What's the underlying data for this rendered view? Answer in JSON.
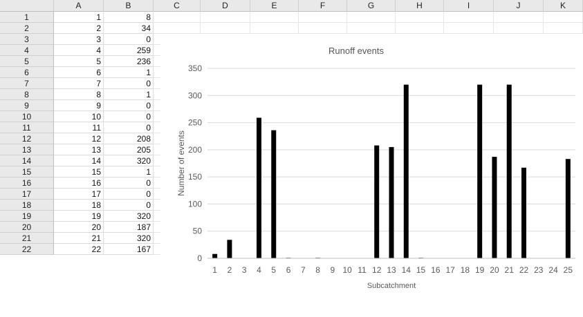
{
  "spreadsheet": {
    "column_headers": [
      "A",
      "B",
      "C",
      "D",
      "E",
      "F",
      "G",
      "H",
      "I",
      "J",
      "K"
    ],
    "rows": [
      {
        "row": "1",
        "a": "1",
        "b": "8"
      },
      {
        "row": "2",
        "a": "2",
        "b": "34"
      },
      {
        "row": "3",
        "a": "3",
        "b": "0"
      },
      {
        "row": "4",
        "a": "4",
        "b": "259"
      },
      {
        "row": "5",
        "a": "5",
        "b": "236"
      },
      {
        "row": "6",
        "a": "6",
        "b": "1"
      },
      {
        "row": "7",
        "a": "7",
        "b": "0"
      },
      {
        "row": "8",
        "a": "8",
        "b": "1"
      },
      {
        "row": "9",
        "a": "9",
        "b": "0"
      },
      {
        "row": "10",
        "a": "10",
        "b": "0"
      },
      {
        "row": "11",
        "a": "11",
        "b": "0"
      },
      {
        "row": "12",
        "a": "12",
        "b": "208"
      },
      {
        "row": "13",
        "a": "13",
        "b": "205"
      },
      {
        "row": "14",
        "a": "14",
        "b": "320"
      },
      {
        "row": "15",
        "a": "15",
        "b": "1"
      },
      {
        "row": "16",
        "a": "16",
        "b": "0"
      },
      {
        "row": "17",
        "a": "17",
        "b": "0"
      },
      {
        "row": "18",
        "a": "18",
        "b": "0"
      },
      {
        "row": "19",
        "a": "19",
        "b": "320"
      },
      {
        "row": "20",
        "a": "20",
        "b": "187"
      },
      {
        "row": "21",
        "a": "21",
        "b": "320"
      },
      {
        "row": "22",
        "a": "22",
        "b": "167"
      }
    ]
  },
  "chart_data": {
    "type": "bar",
    "title": "Runoff events",
    "xlabel": "Subcatchment",
    "ylabel": "Number of events",
    "ylim": [
      0,
      350
    ],
    "yticks": [
      "0",
      "50",
      "100",
      "150",
      "200",
      "250",
      "300",
      "350"
    ],
    "categories": [
      "1",
      "2",
      "3",
      "4",
      "5",
      "6",
      "7",
      "8",
      "9",
      "10",
      "11",
      "12",
      "13",
      "14",
      "15",
      "16",
      "17",
      "18",
      "19",
      "20",
      "21",
      "22",
      "23",
      "24",
      "25"
    ],
    "values": [
      8,
      34,
      0,
      259,
      236,
      1,
      0,
      1,
      0,
      0,
      0,
      208,
      205,
      320,
      1,
      0,
      0,
      0,
      320,
      187,
      320,
      167,
      0,
      0,
      183
    ],
    "bar_color": "#000000",
    "grid": true,
    "legend": "none"
  }
}
